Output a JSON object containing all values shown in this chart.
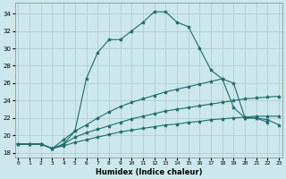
{
  "xlabel": "Humidex (Indice chaleur)",
  "bg_color": "#cce8ed",
  "line_color": "#1e6b6b",
  "grid_color": "#b0cdd4",
  "series": {
    "line1": {
      "x": [
        0,
        1,
        2,
        3,
        4,
        5,
        6,
        7,
        8,
        9,
        10,
        11,
        12,
        13,
        14,
        15,
        16,
        17,
        18,
        19,
        20,
        21,
        22
      ],
      "y": [
        19,
        19,
        19,
        18.5,
        19,
        20.5,
        26.5,
        29.5,
        31,
        31,
        32,
        33,
        34.2,
        34.2,
        33,
        32.5,
        30,
        27.5,
        26.5,
        26,
        22,
        22,
        21.5
      ]
    },
    "line2": {
      "x": [
        0,
        1,
        2,
        3,
        4,
        5,
        6,
        7,
        8,
        9,
        10,
        11,
        12,
        13,
        14,
        15,
        16,
        17,
        18,
        19,
        20,
        21,
        22,
        23
      ],
      "y": [
        19,
        19,
        19,
        18.5,
        19.5,
        20.5,
        21.2,
        22,
        22.7,
        23.3,
        23.8,
        24.2,
        24.6,
        25.0,
        25.3,
        25.6,
        25.9,
        26.2,
        26.5,
        23.2,
        22.0,
        22.0,
        21.8,
        21.2
      ]
    },
    "line3": {
      "x": [
        0,
        1,
        2,
        3,
        4,
        5,
        6,
        7,
        8,
        9,
        10,
        11,
        12,
        13,
        14,
        15,
        16,
        17,
        18,
        19,
        20,
        21,
        22,
        23
      ],
      "y": [
        19,
        19,
        19,
        18.5,
        19.0,
        19.8,
        20.3,
        20.7,
        21.1,
        21.5,
        21.9,
        22.2,
        22.5,
        22.8,
        23.0,
        23.2,
        23.4,
        23.6,
        23.8,
        24.0,
        24.2,
        24.3,
        24.4,
        24.5
      ]
    },
    "line4": {
      "x": [
        0,
        1,
        2,
        3,
        4,
        5,
        6,
        7,
        8,
        9,
        10,
        11,
        12,
        13,
        14,
        15,
        16,
        17,
        18,
        19,
        20,
        21,
        22,
        23
      ],
      "y": [
        19,
        19,
        19,
        18.5,
        18.8,
        19.2,
        19.5,
        19.8,
        20.1,
        20.4,
        20.6,
        20.8,
        21.0,
        21.2,
        21.3,
        21.5,
        21.6,
        21.8,
        21.9,
        22.0,
        22.1,
        22.2,
        22.2,
        22.2
      ]
    }
  },
  "xlim": [
    -0.3,
    23.3
  ],
  "ylim": [
    17.5,
    35.2
  ],
  "yticks": [
    18,
    20,
    22,
    24,
    26,
    28,
    30,
    32,
    34
  ],
  "xticks": [
    0,
    1,
    2,
    3,
    4,
    5,
    6,
    7,
    8,
    9,
    10,
    11,
    12,
    13,
    14,
    15,
    16,
    17,
    18,
    19,
    20,
    21,
    22,
    23
  ]
}
